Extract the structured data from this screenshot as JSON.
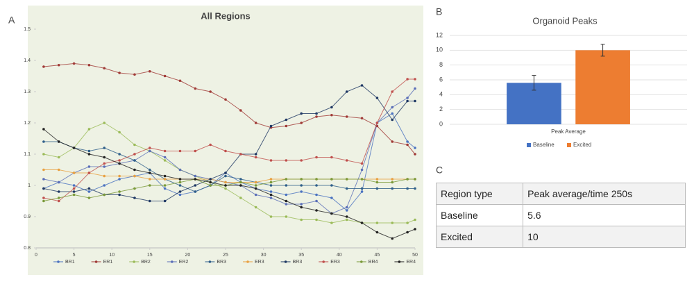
{
  "panel_labels": [
    "A",
    "B",
    "C"
  ],
  "chart_data": [
    {
      "type": "line",
      "title": "All Regions",
      "x": [
        1,
        3,
        5,
        7,
        9,
        11,
        13,
        15,
        17,
        19,
        21,
        23,
        25,
        27,
        29,
        31,
        33,
        35,
        37,
        39,
        41,
        43,
        45,
        47,
        49,
        50
      ],
      "xlim": [
        0,
        50
      ],
      "xticks": [
        0,
        5,
        10,
        15,
        20,
        25,
        30,
        35,
        40,
        45,
        50
      ],
      "ylim": [
        0.8,
        1.5
      ],
      "yticks": [
        0.8,
        0.9,
        1,
        1.1,
        1.2,
        1.3,
        1.4,
        1.5
      ],
      "series": [
        {
          "name": "BR1",
          "color": "#4a72c0",
          "values": [
            0.99,
            1.01,
            1.0,
            0.98,
            1.0,
            1.02,
            1.03,
            1.04,
            0.99,
            0.97,
            0.98,
            1.0,
            1.04,
            1.01,
            0.99,
            0.98,
            0.97,
            0.98,
            0.97,
            0.96,
            0.92,
            0.98,
            1.2,
            1.23,
            1.14,
            1.12
          ]
        },
        {
          "name": "ER1",
          "color": "#a03a36",
          "values": [
            1.38,
            1.385,
            1.39,
            1.385,
            1.375,
            1.36,
            1.355,
            1.365,
            1.35,
            1.335,
            1.31,
            1.3,
            1.275,
            1.24,
            1.2,
            1.185,
            1.19,
            1.2,
            1.22,
            1.225,
            1.22,
            1.215,
            1.19,
            1.14,
            1.13,
            1.1
          ]
        },
        {
          "name": "BR2",
          "color": "#9bbb59",
          "values": [
            1.1,
            1.09,
            1.12,
            1.18,
            1.2,
            1.17,
            1.13,
            1.11,
            1.08,
            1.05,
            1.03,
            1.01,
            0.99,
            0.96,
            0.93,
            0.9,
            0.9,
            0.89,
            0.89,
            0.88,
            0.89,
            0.88,
            0.88,
            0.88,
            0.88,
            0.89
          ]
        },
        {
          "name": "ER2",
          "color": "#5b6fb8",
          "values": [
            1.02,
            1.01,
            1.04,
            1.06,
            1.06,
            1.07,
            1.08,
            1.11,
            1.09,
            1.05,
            1.03,
            1.02,
            1.01,
            1.0,
            0.97,
            0.96,
            0.94,
            0.94,
            0.95,
            0.91,
            0.93,
            1.05,
            1.2,
            1.25,
            1.28,
            1.31
          ]
        },
        {
          "name": "BR3",
          "color": "#2f5f8a",
          "values": [
            1.14,
            1.14,
            1.12,
            1.11,
            1.12,
            1.1,
            1.08,
            1.05,
            1.02,
            1.0,
            0.98,
            1.0,
            1.03,
            1.02,
            1.01,
            1.0,
            1.0,
            1.0,
            1.0,
            1.0,
            0.99,
            0.99,
            0.99,
            0.99,
            0.99,
            0.99
          ]
        },
        {
          "name": "ER3",
          "color": "#e8a040",
          "values": [
            1.05,
            1.05,
            1.04,
            1.04,
            1.03,
            1.03,
            1.03,
            1.02,
            1.02,
            1.02,
            1.02,
            1.02,
            1.01,
            1.01,
            1.01,
            1.02,
            1.02,
            1.02,
            1.02,
            1.02,
            1.02,
            1.02,
            1.02,
            1.02,
            1.02,
            1.02
          ]
        },
        {
          "name": "BR3",
          "color": "#1f3864",
          "values": [
            0.99,
            0.98,
            0.98,
            0.99,
            0.97,
            0.97,
            0.96,
            0.95,
            0.95,
            0.98,
            1.0,
            1.02,
            1.04,
            1.1,
            1.1,
            1.19,
            1.21,
            1.23,
            1.23,
            1.25,
            1.3,
            1.32,
            1.28,
            1.21,
            1.27,
            1.27
          ]
        },
        {
          "name": "ER3",
          "color": "#c0504d",
          "values": [
            0.96,
            0.95,
            0.99,
            1.04,
            1.07,
            1.08,
            1.1,
            1.12,
            1.11,
            1.11,
            1.11,
            1.13,
            1.11,
            1.1,
            1.09,
            1.08,
            1.08,
            1.08,
            1.09,
            1.09,
            1.08,
            1.07,
            1.2,
            1.3,
            1.34,
            1.34
          ]
        },
        {
          "name": "BR4",
          "color": "#7a9a3a",
          "values": [
            0.95,
            0.96,
            0.97,
            0.96,
            0.97,
            0.98,
            0.99,
            1.0,
            1.0,
            1.01,
            1.02,
            1.0,
            1.0,
            1.01,
            1.0,
            1.01,
            1.02,
            1.02,
            1.02,
            1.02,
            1.02,
            1.02,
            1.01,
            1.01,
            1.02,
            1.02
          ]
        },
        {
          "name": "ER4",
          "color": "#222222",
          "values": [
            1.18,
            1.14,
            1.12,
            1.1,
            1.09,
            1.07,
            1.05,
            1.04,
            1.03,
            1.02,
            1.02,
            1.01,
            1.0,
            1.0,
            0.99,
            0.97,
            0.95,
            0.93,
            0.92,
            0.91,
            0.9,
            0.88,
            0.85,
            0.83,
            0.85,
            0.86
          ]
        }
      ]
    },
    {
      "type": "bar",
      "title": "Organoid Peaks",
      "categories": [
        "Peak Average"
      ],
      "ylim": [
        0,
        12
      ],
      "yticks": [
        0,
        2,
        4,
        6,
        8,
        10,
        12
      ],
      "grid": true,
      "series": [
        {
          "name": "Baseline",
          "color": "#4472c4",
          "values": [
            5.6
          ],
          "errors": [
            1.0
          ]
        },
        {
          "name": "Excited",
          "color": "#ed7d31",
          "values": [
            10
          ],
          "errors": [
            0.8
          ]
        }
      ]
    }
  ],
  "table": {
    "header": [
      "Region type",
      "Peak average/time 250s"
    ],
    "rows": [
      [
        "Baseline",
        "5.6"
      ],
      [
        "Excited",
        "10"
      ]
    ]
  }
}
